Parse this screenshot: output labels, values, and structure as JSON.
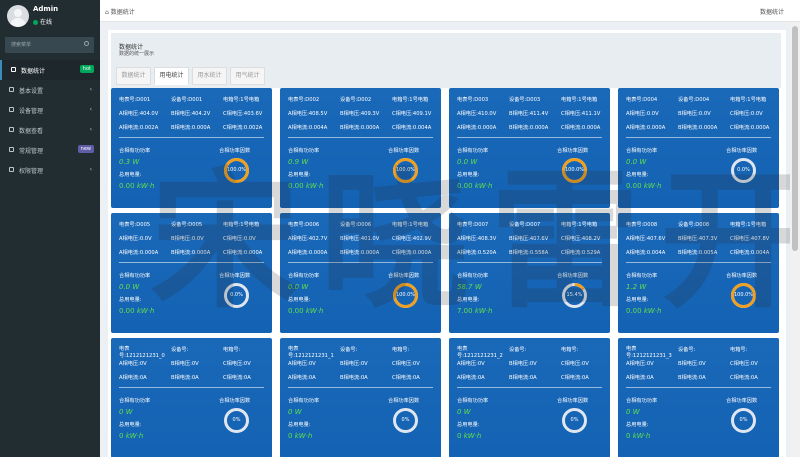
{
  "user": {
    "name": "Admin",
    "status": "在线"
  },
  "sidebar": {
    "search_placeholder": "搜索菜单",
    "items": [
      {
        "label": "数据统计",
        "badge": "hot",
        "badge_color": "#00a65a",
        "active": true
      },
      {
        "label": "基本设置",
        "chevron": "‹"
      },
      {
        "label": "设备管理",
        "chevron": "‹"
      },
      {
        "label": "数据查看",
        "chevron": "‹"
      },
      {
        "label": "常规管理",
        "badge": "new",
        "badge_color": "#605ca8"
      },
      {
        "label": "权限管理",
        "chevron": "‹"
      }
    ]
  },
  "header": {
    "breadcrumb": "数据统计",
    "right_label": "数据统计"
  },
  "panel": {
    "title": "数据统计",
    "subtitle": "数据的统一展示",
    "tabs": [
      "数据统计",
      "用电统计",
      "用水统计",
      "用气统计"
    ],
    "active_tab": 1
  },
  "labels": {
    "total_power": "合相有功功率",
    "power_factor": "合相功率因数",
    "total_energy": "总用电量:",
    "power_unit": "W",
    "energy_unit": "kW·h"
  },
  "colors": {
    "card_bg": "#1565b5",
    "value_green": "#5ee04a",
    "gauge_orange": "#f0a020",
    "gauge_track": "#dfe6ef"
  },
  "meters": [
    {
      "meter": "电表号:D001",
      "device": "设备号:D001",
      "box": "电箱号:1号电箱",
      "va": "A相电压:404.0V",
      "vb": "B相电压:404.2V",
      "vc": "C相电压:403.6V",
      "ia": "A相电流:0.002A",
      "ib": "B相电流:0.000A",
      "ic": "C相电流:0.002A",
      "power": "0.3",
      "energy": "0.00",
      "pf": "100.0%",
      "pf_value": 1.0
    },
    {
      "meter": "电表号:D002",
      "device": "设备号:D002",
      "box": "电箱号:1号电箱",
      "va": "A相电压:408.5V",
      "vb": "B相电压:409.3V",
      "vc": "C相电压:409.1V",
      "ia": "A相电流:0.004A",
      "ib": "B相电流:0.000A",
      "ic": "C相电流:0.004A",
      "power": "0.9",
      "energy": "0.00",
      "pf": "100.0%",
      "pf_value": 1.0
    },
    {
      "meter": "电表号:D003",
      "device": "设备号:D003",
      "box": "电箱号:1号电箱",
      "va": "A相电压:410.0V",
      "vb": "B相电压:411.4V",
      "vc": "C相电压:411.1V",
      "ia": "A相电流:0.000A",
      "ib": "B相电流:0.000A",
      "ic": "C相电流:0.000A",
      "power": "0.0",
      "energy": "0.00",
      "pf": "100.0%",
      "pf_value": 1.0
    },
    {
      "meter": "电表号:D004",
      "device": "设备号:D004",
      "box": "电箱号:1号电箱",
      "va": "A相电压:0.0V",
      "vb": "B相电压:0.0V",
      "vc": "C相电压:0.0V",
      "ia": "A相电流:0.000A",
      "ib": "B相电流:0.000A",
      "ic": "C相电流:0.000A",
      "power": "0.0",
      "energy": "0.00",
      "pf": "0.0%",
      "pf_value": 0.0
    },
    {
      "meter": "电表号:D005",
      "device": "设备号:D005",
      "box": "电箱号:1号电箱",
      "va": "A相电压:0.0V",
      "vb": "B相电压:0.0V",
      "vc": "C相电压:0.0V",
      "ia": "A相电流:0.000A",
      "ib": "B相电流:0.000A",
      "ic": "C相电流:0.000A",
      "power": "0.0",
      "energy": "0.00",
      "pf": "0.0%",
      "pf_value": 0.0
    },
    {
      "meter": "电表号:D006",
      "device": "设备号:D006",
      "box": "电箱号:1号电箱",
      "va": "A相电压:402.7V",
      "vb": "B相电压:401.0V",
      "vc": "C相电压:402.9V",
      "ia": "A相电流:0.000A",
      "ib": "B相电流:0.000A",
      "ic": "C相电流:0.000A",
      "power": "0.0",
      "energy": "0.00",
      "pf": "100.0%",
      "pf_value": 1.0
    },
    {
      "meter": "电表号:D007",
      "device": "设备号:D007",
      "box": "电箱号:1号电箱",
      "va": "A相电压:408.3V",
      "vb": "B相电压:407.6V",
      "vc": "C相电压:408.2V",
      "ia": "A相电流:0.520A",
      "ib": "B相电流:0.558A",
      "ic": "C相电流:0.529A",
      "power": "58.7",
      "energy": "7.00",
      "pf": "15.4%",
      "pf_value": 0.154
    },
    {
      "meter": "电表号:D008",
      "device": "设备号:D008",
      "box": "电箱号:1号电箱",
      "va": "A相电压:407.6V",
      "vb": "B相电压:407.3V",
      "vc": "C相电压:407.8V",
      "ia": "A相电流:0.004A",
      "ib": "B相电流:0.005A",
      "ic": "C相电流:0.004A",
      "power": "1.2",
      "energy": "0.00",
      "pf": "100.0%",
      "pf_value": 1.0
    },
    {
      "meter": "电表号:1212121231_0",
      "device": "设备号:",
      "box": "电箱号:",
      "va": "A相电压:0V",
      "vb": "B相电压:0V",
      "vc": "C相电压:0V",
      "ia": "A相电流:0A",
      "ib": "B相电流:0A",
      "ic": "C相电流:0A",
      "power": "0",
      "energy": "0",
      "pf": "0%",
      "pf_value": 0.0
    },
    {
      "meter": "电表号:1212121231_1",
      "device": "设备号:",
      "box": "电箱号:",
      "va": "A相电压:0V",
      "vb": "B相电压:0V",
      "vc": "C相电压:0V",
      "ia": "A相电流:0A",
      "ib": "B相电流:0A",
      "ic": "C相电流:0A",
      "power": "0",
      "energy": "0",
      "pf": "0%",
      "pf_value": 0.0
    },
    {
      "meter": "电表号:1212121231_2",
      "device": "设备号:",
      "box": "电箱号:",
      "va": "A相电压:0V",
      "vb": "B相电压:0V",
      "vc": "C相电压:0V",
      "ia": "A相电流:0A",
      "ib": "B相电流:0A",
      "ic": "C相电流:0A",
      "power": "0",
      "energy": "0",
      "pf": "0%",
      "pf_value": 0.0
    },
    {
      "meter": "电表号:1212121231_3",
      "device": "设备号:",
      "box": "电箱号:",
      "va": "A相电压:0V",
      "vb": "B相电压:0V",
      "vc": "C相电压:0V",
      "ia": "A相电流:0A",
      "ib": "B相电流:0A",
      "ic": "C相电流:0A",
      "power": "0",
      "energy": "0",
      "pf": "0%",
      "pf_value": 0.0
    }
  ],
  "watermark": "宋晓雷开发"
}
